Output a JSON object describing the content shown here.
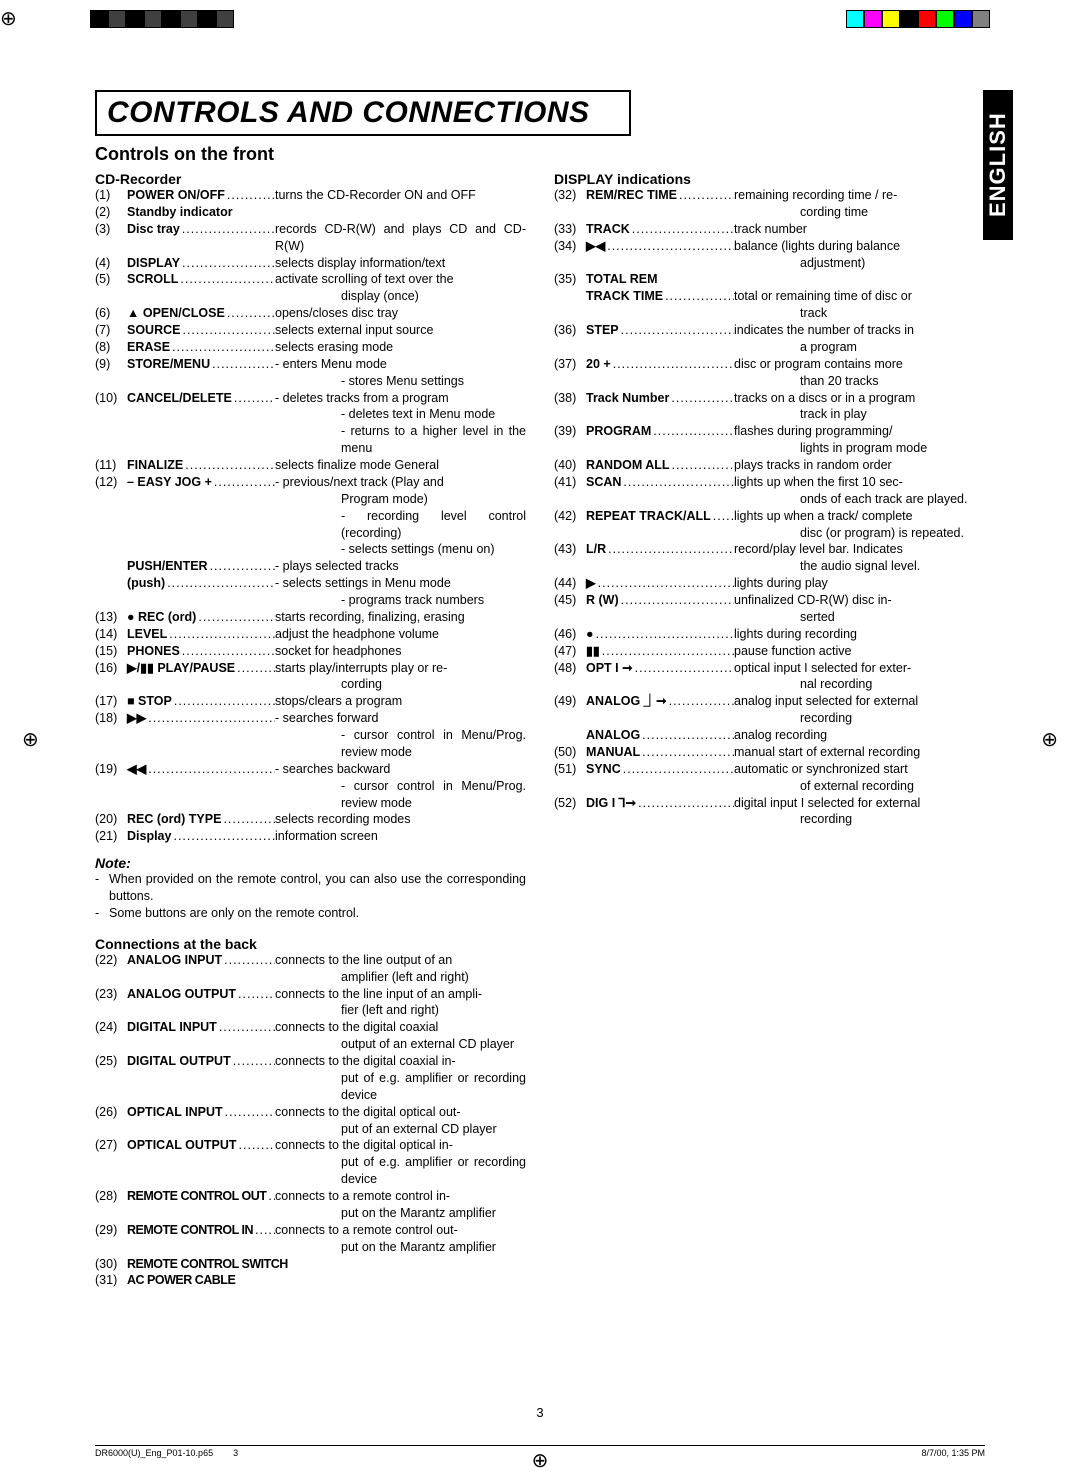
{
  "regColorsLeft": [
    "#000000",
    "#404040",
    "#000000",
    "#404040",
    "#000000",
    "#404040",
    "#000000",
    "#404040"
  ],
  "regColorsRight": [
    "#00ffff",
    "#ff00ff",
    "#ffff00",
    "#000000",
    "#ff0000",
    "#00ff00",
    "#0000ff",
    "#808080"
  ],
  "title": "CONTROLS AND CONNECTIONS",
  "sideTab": "ENGLISH",
  "sectionFront": "Controls on the front",
  "sectionCD": "CD-Recorder",
  "sectionDisplay": "DISPLAY indications",
  "sectionConnections": "Connections at the back",
  "noteHead": "Note:",
  "notes": [
    "When provided on the remote control, you can also use the corresponding buttons.",
    "Some buttons are only on the remote control."
  ],
  "pageNum": "3",
  "footer": {
    "file": "DR6000(U)_Eng_P01-10.p65",
    "page": "3",
    "stamp": "8/7/00, 1:35 PM"
  },
  "left": [
    {
      "n": "(1)",
      "lbl": "POWER ON/OFF",
      "desc": "turns the CD-Recorder ON and OFF"
    },
    {
      "n": "(2)",
      "lbl": "Standby indicator",
      "desc": ""
    },
    {
      "n": "(3)",
      "lbl": "Disc tray",
      "desc": "records CD-R(W) and plays CD and CD-R(W)",
      "extraCont": [
        "and CD-R(W)"
      ],
      "descFirst": "records CD-R(W) and plays CD"
    },
    {
      "n": "(4)",
      "lbl": "DISPLAY",
      "desc": "selects display information/text"
    },
    {
      "n": "(5)",
      "lbl": "SCROLL",
      "desc": "activate scrolling of text over the",
      "cont": [
        "display (once)"
      ]
    },
    {
      "n": "(6)",
      "lbl": "▲ OPEN/CLOSE",
      "sym": true,
      "desc": "opens/closes disc tray"
    },
    {
      "n": "(7)",
      "lbl": "SOURCE",
      "desc": "selects external input source"
    },
    {
      "n": "(8)",
      "lbl": "ERASE",
      "desc": "selects erasing mode"
    },
    {
      "n": "(9)",
      "lbl": "STORE/MENU",
      "desc": "- enters Menu mode",
      "cont": [
        "- stores Menu settings"
      ]
    },
    {
      "n": "(10)",
      "lbl": "CANCEL/DELETE",
      "desc": "- deletes tracks from a program",
      "cont": [
        "- deletes text in Menu mode",
        "- returns to a higher level in the menu"
      ]
    },
    {
      "n": "(11)",
      "lbl": "FINALIZE",
      "desc": "selects finalize mode General"
    },
    {
      "n": "(12)",
      "lbl": "– EASY JOG +",
      "desc": "- previous/next track (Play and",
      "cont": [
        "Program mode)",
        "- recording level control (recording)",
        "- selects settings (menu on)"
      ]
    },
    {
      "n": "",
      "lbl": "PUSH/ENTER",
      "desc": "- plays selected tracks"
    },
    {
      "n": "",
      "lbl": "(push)",
      "desc": "- selects settings in Menu mode",
      "cont": [
        "- programs track numbers"
      ]
    },
    {
      "n": "(13)",
      "lbl": "● REC (ord)",
      "sym": true,
      "desc": "starts recording, finalizing, erasing"
    },
    {
      "n": "(14)",
      "lbl": "LEVEL",
      "desc": "adjust the headphone volume"
    },
    {
      "n": "(15)",
      "lbl": "PHONES",
      "desc": "socket for headphones"
    },
    {
      "n": "(16)",
      "lbl": "▶/▮▮ PLAY/PAUSE",
      "sym": true,
      "desc": "starts play/interrupts play or re-",
      "cont": [
        "cording"
      ]
    },
    {
      "n": "(17)",
      "lbl": "■ STOP",
      "sym": true,
      "desc": "stops/clears a program"
    },
    {
      "n": "(18)",
      "lbl": "▶▶",
      "sym": true,
      "desc": "- searches forward",
      "cont": [
        "- cursor control in Menu/Prog. review mode"
      ]
    },
    {
      "n": "(19)",
      "lbl": "◀◀",
      "sym": true,
      "desc": "- searches backward",
      "cont": [
        "- cursor control in Menu/Prog. review mode"
      ]
    },
    {
      "n": "(20)",
      "lbl": "REC (ord) TYPE",
      "desc": "selects recording modes"
    },
    {
      "n": "(21)",
      "lbl": "Display",
      "desc": "information screen"
    }
  ],
  "conn": [
    {
      "n": "(22)",
      "lbl": "ANALOG INPUT",
      "desc": "connects to the line output of an",
      "cont": [
        "amplifier (left and right)"
      ]
    },
    {
      "n": "(23)",
      "lbl": "ANALOG OUTPUT",
      "desc": "connects to the line input of an ampli-",
      "cont": [
        "fier (left and right)"
      ]
    },
    {
      "n": "(24)",
      "lbl": "DIGITAL INPUT",
      "desc": "connects to the digital coaxial",
      "cont": [
        "output of an external CD player"
      ]
    },
    {
      "n": "(25)",
      "lbl": "DIGITAL OUTPUT",
      "desc": "connects to the digital coaxial in-",
      "cont": [
        "put of e.g. amplifier or recording device"
      ]
    },
    {
      "n": "(26)",
      "lbl": "OPTICAL INPUT",
      "desc": "connects to the digital optical out-",
      "cont": [
        "put of an external CD player"
      ]
    },
    {
      "n": "(27)",
      "lbl": "OPTICAL OUTPUT",
      "desc": "connects to the digital optical in-",
      "cont": [
        "put of e.g. amplifier or recording device"
      ]
    },
    {
      "n": "(28)",
      "lbl": "REMOTE CONTROL OUT",
      "cond": true,
      "desc": "connects to a remote control in-",
      "cont": [
        "put on the Marantz amplifier"
      ]
    },
    {
      "n": "(29)",
      "lbl": "REMOTE CONTROL IN",
      "cond": true,
      "desc": "connects to a remote control out-",
      "cont": [
        "put on the Marantz amplifier"
      ]
    },
    {
      "n": "(30)",
      "lbl": "REMOTE CONTROL SWITCH",
      "cond": true,
      "desc": ""
    },
    {
      "n": "(31)",
      "lbl": "AC POWER CABLE",
      "cond": true,
      "desc": ""
    }
  ],
  "right": [
    {
      "n": "(32)",
      "lbl": "REM/REC TIME",
      "desc": "remaining recording time / re-",
      "cont": [
        "cording time"
      ]
    },
    {
      "n": "(33)",
      "lbl": "TRACK",
      "desc": "track number"
    },
    {
      "n": "(34)",
      "lbl": "▶◀",
      "sym": true,
      "desc": "balance (lights during balance",
      "cont": [
        "adjustment)"
      ]
    },
    {
      "n": "(35)",
      "lbl": "TOTAL REM",
      "desc": ""
    },
    {
      "n": "",
      "lbl": "TRACK TIME",
      "desc": "total or remaining time of disc or",
      "cont": [
        "track"
      ]
    },
    {
      "n": "(36)",
      "lbl": "STEP",
      "desc": "indicates the number of tracks in",
      "cont": [
        "a program"
      ]
    },
    {
      "n": "(37)",
      "lbl": "20 +",
      "desc": "disc or program contains more",
      "cont": [
        "than 20 tracks"
      ]
    },
    {
      "n": "(38)",
      "lbl": "Track Number",
      "desc": "tracks on a discs or in a program",
      "cont": [
        "track in play"
      ]
    },
    {
      "n": "(39)",
      "lbl": "PROGRAM",
      "desc": "flashes during programming/",
      "cont": [
        "lights in program mode"
      ]
    },
    {
      "n": "(40)",
      "lbl": "RANDOM ALL",
      "desc": "plays tracks in random order"
    },
    {
      "n": "(41)",
      "lbl": "SCAN",
      "desc": "lights up when the first 10 sec-",
      "cont": [
        "onds of each track are played."
      ]
    },
    {
      "n": "(42)",
      "lbl": "REPEAT TRACK/ALL",
      "desc": "lights up when a track/ complete",
      "cont": [
        "disc (or program) is repeated."
      ]
    },
    {
      "n": "(43)",
      "lbl": "L/R",
      "desc": "record/play level bar. Indicates",
      "cont": [
        "the audio signal level."
      ]
    },
    {
      "n": "(44)",
      "lbl": "▶",
      "sym": true,
      "desc": "lights during play"
    },
    {
      "n": "(45)",
      "lbl": "R (W)",
      "desc": "unfinalized CD-R(W) disc in-",
      "cont": [
        "serted"
      ]
    },
    {
      "n": "(46)",
      "lbl": "●",
      "sym": true,
      "desc": "lights during recording"
    },
    {
      "n": "(47)",
      "lbl": "▮▮",
      "sym": true,
      "desc": "pause function active"
    },
    {
      "n": "(48)",
      "lbl": "OPT I ➞",
      "sym": true,
      "desc": "optical input I selected for exter-",
      "cont": [
        "nal recording"
      ]
    },
    {
      "n": "(49)",
      "lbl": "ANALOG ⏌➞",
      "sym": true,
      "desc": "analog input selected for external",
      "cont": [
        "recording"
      ]
    },
    {
      "n": "",
      "lbl": "ANALOG",
      "desc": "analog recording"
    },
    {
      "n": "(50)",
      "lbl": "MANUAL",
      "desc": "manual start of external recording"
    },
    {
      "n": "(51)",
      "lbl": "SYNC",
      "desc": "automatic or synchronized start",
      "cont": [
        "of external recording"
      ]
    },
    {
      "n": "(52)",
      "lbl": "DIG I ⅂➞",
      "sym": true,
      "desc": "digital input I selected for external",
      "cont": [
        "recording"
      ]
    }
  ]
}
